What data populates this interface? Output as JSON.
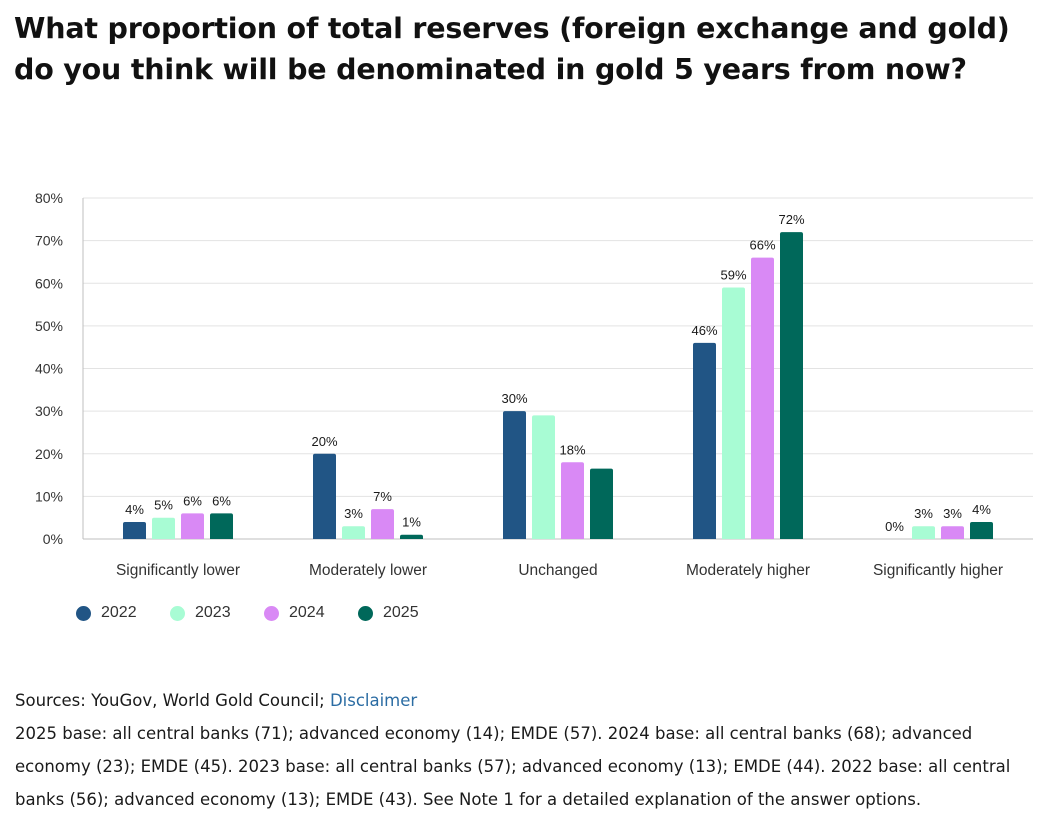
{
  "title": "What proportion of total reserves (foreign exchange and gold) do you think will be denominated in gold 5 years from now?",
  "chart_data": {
    "type": "bar",
    "categories": [
      "Significantly lower",
      "Moderately lower",
      "Unchanged",
      "Moderately higher",
      "Significantly higher"
    ],
    "series": [
      {
        "name": "2022",
        "color": "#215585",
        "values": [
          4,
          20,
          30,
          46,
          0
        ],
        "labels": [
          "4%",
          "20%",
          "30%",
          "46%",
          "0%"
        ]
      },
      {
        "name": "2023",
        "color": "#a8fcd4",
        "values": [
          5,
          3,
          29,
          59,
          3
        ],
        "labels": [
          "5%",
          "3%",
          "",
          "59%",
          "3%"
        ]
      },
      {
        "name": "2024",
        "color": "#d989f5",
        "values": [
          6,
          7,
          18,
          66,
          3
        ],
        "labels": [
          "6%",
          "7%",
          "18%",
          "66%",
          "3%"
        ]
      },
      {
        "name": "2025",
        "color": "#00685a",
        "values": [
          6,
          1,
          16.5,
          72,
          4
        ],
        "labels": [
          "6%",
          "1%",
          "",
          "72%",
          "4%"
        ]
      }
    ],
    "ylim": [
      0,
      80
    ],
    "yticks": [
      "0%",
      "10%",
      "20%",
      "30%",
      "40%",
      "50%",
      "60%",
      "70%",
      "80%"
    ],
    "grid": true,
    "legend_position": "bottom-left"
  },
  "footer": {
    "sources_prefix": "Sources: YouGov, World Gold Council; ",
    "disclaimer_link": "Disclaimer",
    "note": "2025 base: all central banks (71); advanced economy (14); EMDE (57). 2024 base: all central banks (68); advanced economy (23); EMDE (45). 2023 base: all central banks (57); advanced economy (13); EMDE (44). 2022 base: all central banks (56); advanced economy (13); EMDE (43). See Note 1 for a detailed explanation of the answer options."
  }
}
